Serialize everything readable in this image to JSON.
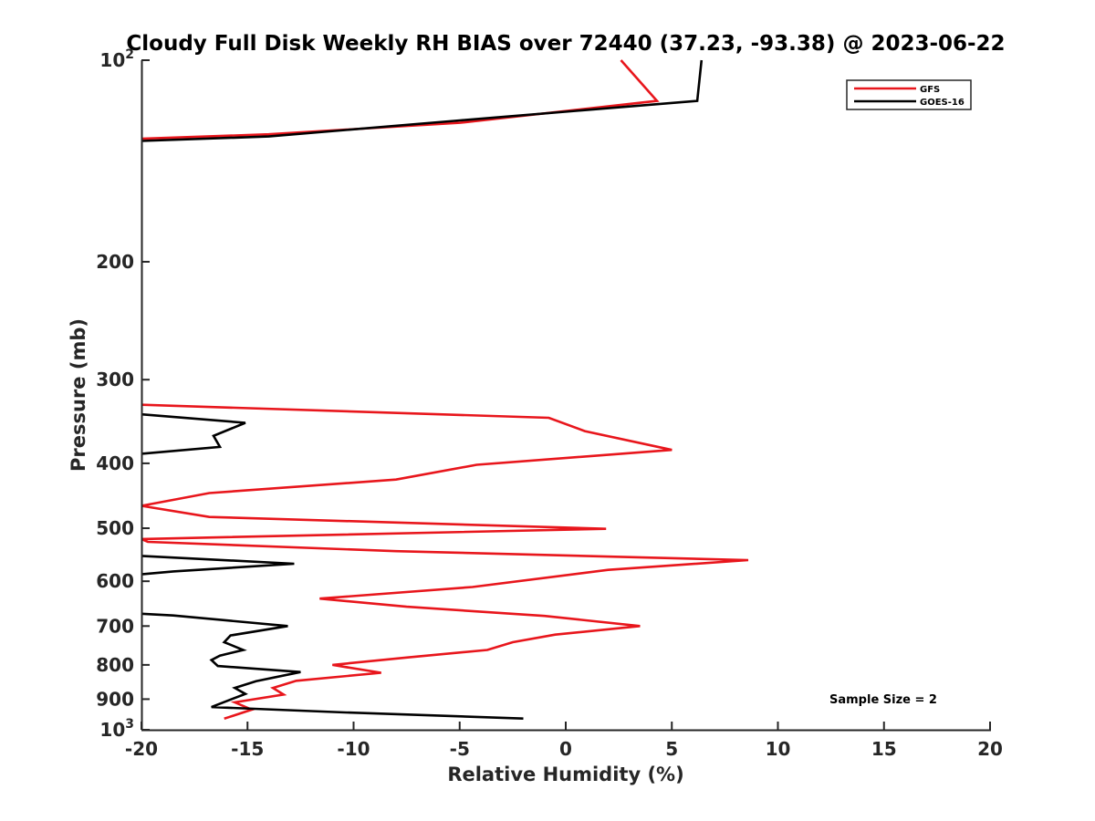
{
  "chart_data": {
    "type": "line",
    "title": "Cloudy Full Disk Weekly RH BIAS over 72440 (37.23, -93.38) @ 2023-06-22",
    "xlabel": "Relative Humidity (%)",
    "ylabel": "Pressure (mb)",
    "xlim": [
      -20,
      20
    ],
    "ylim": [
      100,
      1000
    ],
    "yscale": "log",
    "y_reversed": true,
    "grid": false,
    "legend_placement": "top-right",
    "x_ticks": [
      -20,
      -15,
      -10,
      -5,
      0,
      5,
      10,
      15,
      20
    ],
    "x_tick_labels": [
      "-20",
      "-15",
      "-10",
      "-5",
      "0",
      "5",
      "10",
      "15",
      "20"
    ],
    "y_ticks": [
      100,
      200,
      300,
      400,
      500,
      600,
      700,
      800,
      900,
      1000
    ],
    "y_tick_labels": [
      {
        "base": "10",
        "exp": "2"
      },
      {
        "base": "200",
        "exp": ""
      },
      {
        "base": "300",
        "exp": ""
      },
      {
        "base": "400",
        "exp": ""
      },
      {
        "base": "500",
        "exp": ""
      },
      {
        "base": "600",
        "exp": ""
      },
      {
        "base": "700",
        "exp": ""
      },
      {
        "base": "800",
        "exp": ""
      },
      {
        "base": "900",
        "exp": ""
      },
      {
        "base": "10",
        "exp": "3"
      }
    ],
    "annotation": "Sample Size = 2",
    "series": [
      {
        "name": "GFS",
        "color": "#e8161c",
        "points": [
          {
            "x": 2.6,
            "p": 100
          },
          {
            "x": 4.3,
            "p": 115
          },
          {
            "x": -5,
            "p": 124
          },
          {
            "x": -14,
            "p": 129
          },
          {
            "x": -20,
            "p": 131
          },
          {
            "x": null,
            "p": null
          },
          {
            "x": -20,
            "p": 327
          },
          {
            "x": -0.8,
            "p": 342
          },
          {
            "x": 0.9,
            "p": 358
          },
          {
            "x": 5,
            "p": 382
          },
          {
            "x": -4.2,
            "p": 402
          },
          {
            "x": -8,
            "p": 423
          },
          {
            "x": -16.8,
            "p": 443
          },
          {
            "x": -20,
            "p": 463
          },
          {
            "x": -16.8,
            "p": 481
          },
          {
            "x": 1.9,
            "p": 501
          },
          {
            "x": -20,
            "p": 519
          },
          {
            "x": -19.7,
            "p": 524
          },
          {
            "x": -8,
            "p": 541
          },
          {
            "x": 8.6,
            "p": 558
          },
          {
            "x": 2,
            "p": 577
          },
          {
            "x": -4.4,
            "p": 612
          },
          {
            "x": -11.6,
            "p": 637
          },
          {
            "x": -7.5,
            "p": 655
          },
          {
            "x": -1,
            "p": 676
          },
          {
            "x": 3.5,
            "p": 700
          },
          {
            "x": -0.5,
            "p": 721
          },
          {
            "x": -2.5,
            "p": 740
          },
          {
            "x": -3.7,
            "p": 760
          },
          {
            "x": -7.5,
            "p": 780
          },
          {
            "x": -11,
            "p": 800
          },
          {
            "x": -8.7,
            "p": 822
          },
          {
            "x": -12.7,
            "p": 845
          },
          {
            "x": -13.8,
            "p": 866
          },
          {
            "x": -13.3,
            "p": 886
          },
          {
            "x": -15.6,
            "p": 910
          },
          {
            "x": -14.8,
            "p": 933
          },
          {
            "x": -15.9,
            "p": 958
          },
          {
            "x": -16.1,
            "p": 962
          }
        ]
      },
      {
        "name": "GOES-16",
        "color": "#000000",
        "points": [
          {
            "x": 6.4,
            "p": 100
          },
          {
            "x": 6.2,
            "p": 115
          },
          {
            "x": -5,
            "p": 123
          },
          {
            "x": -14,
            "p": 130
          },
          {
            "x": -20,
            "p": 132
          },
          {
            "x": null,
            "p": null
          },
          {
            "x": -20,
            "p": 338
          },
          {
            "x": -15.1,
            "p": 348
          },
          {
            "x": -16.6,
            "p": 364
          },
          {
            "x": -16.3,
            "p": 378
          },
          {
            "x": -20,
            "p": 387
          },
          {
            "x": null,
            "p": null
          },
          {
            "x": -20,
            "p": 550
          },
          {
            "x": -12.8,
            "p": 565
          },
          {
            "x": -18.5,
            "p": 580
          },
          {
            "x": -20,
            "p": 586
          },
          {
            "x": null,
            "p": null
          },
          {
            "x": -20,
            "p": 671
          },
          {
            "x": -18.5,
            "p": 675
          },
          {
            "x": -13.1,
            "p": 700
          },
          {
            "x": -15.8,
            "p": 723
          },
          {
            "x": -16.1,
            "p": 740
          },
          {
            "x": -15.2,
            "p": 760
          },
          {
            "x": -16.3,
            "p": 775
          },
          {
            "x": -16.7,
            "p": 787
          },
          {
            "x": -16.4,
            "p": 803
          },
          {
            "x": -12.5,
            "p": 820
          },
          {
            "x": -14.6,
            "p": 846
          },
          {
            "x": -15.6,
            "p": 866
          },
          {
            "x": -15.1,
            "p": 884
          },
          {
            "x": -15.9,
            "p": 904
          },
          {
            "x": -16.7,
            "p": 925
          },
          {
            "x": -10.4,
            "p": 942
          },
          {
            "x": -2,
            "p": 962
          }
        ]
      }
    ]
  }
}
